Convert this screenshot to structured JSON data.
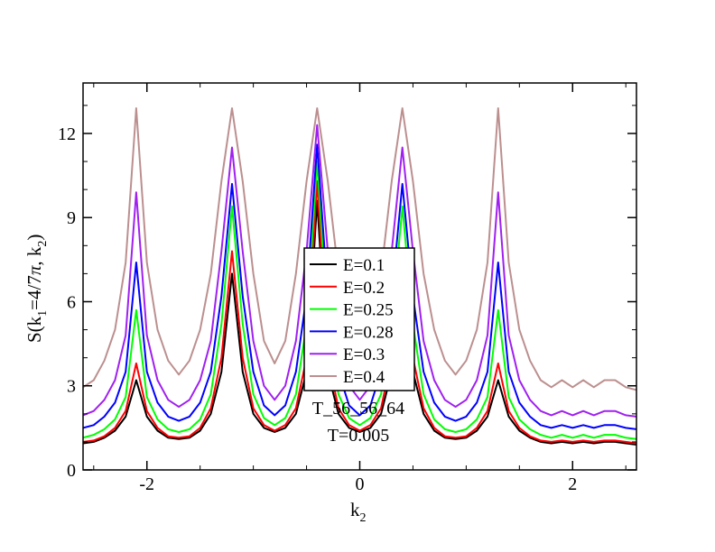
{
  "chart_data": {
    "type": "line",
    "xlabel_main": "k",
    "xlabel_sub": "2",
    "ylabel": {
      "prefix": "S(k",
      "sub1": "1",
      "mid": "=4/7",
      "pi": "π",
      "comma": ", k",
      "sub2": "2",
      "suffix": ")"
    },
    "xlim": [
      -2.6,
      2.6
    ],
    "ylim": [
      0,
      13.8
    ],
    "xticks": [
      -2,
      0,
      2
    ],
    "xtick_labels": [
      "-2",
      "0",
      "2"
    ],
    "yticks": [
      0,
      3,
      6,
      9,
      12
    ],
    "ytick_labels": [
      "0",
      "3",
      "6",
      "9",
      "12"
    ],
    "legend_position": "center",
    "annotations": [
      "T_56_56_64",
      "T=0.005"
    ],
    "x": [
      -2.6,
      -2.5,
      -2.4,
      -2.3,
      -2.2,
      -2.1,
      -2.0,
      -1.9,
      -1.8,
      -1.7,
      -1.6,
      -1.5,
      -1.4,
      -1.3,
      -1.2,
      -1.1,
      -1.0,
      -0.9,
      -0.8,
      -0.7,
      -0.6,
      -0.5,
      -0.4,
      -0.3,
      -0.2,
      -0.1,
      0.0,
      0.1,
      0.2,
      0.3,
      0.4,
      0.5,
      0.6,
      0.7,
      0.8,
      0.9,
      1.0,
      1.1,
      1.2,
      1.3,
      1.4,
      1.5,
      1.6,
      1.7,
      1.8,
      1.9,
      2.0,
      2.1,
      2.2,
      2.3,
      2.4,
      2.5,
      2.6
    ],
    "series": [
      {
        "name": "E=0.1",
        "color": "#000000",
        "values": [
          0.95,
          1.0,
          1.15,
          1.4,
          1.9,
          3.2,
          1.9,
          1.4,
          1.15,
          1.1,
          1.15,
          1.4,
          2.0,
          3.5,
          7.0,
          3.5,
          2.0,
          1.5,
          1.35,
          1.5,
          2.0,
          3.5,
          9.6,
          3.5,
          2.0,
          1.5,
          1.35,
          1.5,
          2.0,
          3.5,
          7.0,
          3.5,
          2.0,
          1.4,
          1.15,
          1.1,
          1.15,
          1.4,
          1.9,
          3.2,
          1.9,
          1.4,
          1.15,
          1.0,
          0.95,
          1.0,
          0.95,
          1.0,
          0.95,
          1.0,
          1.0,
          0.95,
          0.9
        ]
      },
      {
        "name": "E=0.2",
        "color": "#ff0000",
        "values": [
          1.0,
          1.05,
          1.2,
          1.5,
          2.1,
          3.8,
          2.1,
          1.5,
          1.2,
          1.15,
          1.2,
          1.5,
          2.2,
          4.0,
          7.8,
          4.0,
          2.2,
          1.6,
          1.4,
          1.6,
          2.2,
          4.0,
          10.3,
          4.0,
          2.2,
          1.6,
          1.4,
          1.6,
          2.2,
          4.0,
          7.8,
          4.0,
          2.2,
          1.5,
          1.2,
          1.15,
          1.2,
          1.5,
          2.1,
          3.8,
          2.1,
          1.5,
          1.2,
          1.05,
          1.0,
          1.05,
          1.0,
          1.05,
          1.0,
          1.05,
          1.05,
          1.0,
          0.95
        ]
      },
      {
        "name": "E=0.25",
        "color": "#00ff00",
        "values": [
          1.15,
          1.25,
          1.45,
          1.8,
          2.6,
          5.7,
          2.6,
          1.8,
          1.45,
          1.35,
          1.45,
          1.8,
          2.7,
          5.2,
          9.4,
          5.2,
          2.7,
          1.85,
          1.6,
          1.85,
          2.7,
          5.2,
          11.0,
          5.2,
          2.7,
          1.85,
          1.6,
          1.85,
          2.7,
          5.2,
          9.4,
          5.2,
          2.7,
          1.8,
          1.45,
          1.35,
          1.45,
          1.8,
          2.6,
          5.7,
          2.6,
          1.8,
          1.45,
          1.25,
          1.15,
          1.25,
          1.15,
          1.25,
          1.15,
          1.25,
          1.25,
          1.15,
          1.1
        ]
      },
      {
        "name": "E=0.28",
        "color": "#0000ff",
        "values": [
          1.5,
          1.6,
          1.9,
          2.4,
          3.5,
          7.4,
          3.5,
          2.4,
          1.9,
          1.75,
          1.9,
          2.4,
          3.5,
          6.2,
          10.2,
          6.2,
          3.5,
          2.3,
          1.95,
          2.3,
          3.5,
          6.2,
          11.6,
          6.2,
          3.5,
          2.3,
          1.95,
          2.3,
          3.5,
          6.2,
          10.2,
          6.2,
          3.5,
          2.4,
          1.9,
          1.75,
          1.9,
          2.4,
          3.5,
          7.4,
          3.5,
          2.4,
          1.9,
          1.6,
          1.5,
          1.6,
          1.5,
          1.6,
          1.5,
          1.6,
          1.6,
          1.5,
          1.45
        ]
      },
      {
        "name": "E=0.3",
        "color": "#a020f0",
        "values": [
          1.95,
          2.1,
          2.5,
          3.2,
          4.8,
          9.9,
          4.8,
          3.2,
          2.5,
          2.25,
          2.5,
          3.2,
          4.6,
          7.8,
          11.5,
          7.8,
          4.6,
          3.0,
          2.5,
          3.0,
          4.6,
          7.8,
          12.3,
          7.8,
          4.6,
          3.0,
          2.5,
          3.0,
          4.6,
          7.8,
          11.5,
          7.8,
          4.6,
          3.2,
          2.5,
          2.25,
          2.5,
          3.2,
          4.8,
          9.9,
          4.8,
          3.2,
          2.5,
          2.1,
          1.95,
          2.1,
          1.95,
          2.1,
          1.95,
          2.1,
          2.1,
          1.95,
          1.9
        ]
      },
      {
        "name": "E=0.4",
        "color": "#bc8f8f",
        "values": [
          2.95,
          3.2,
          3.9,
          5.0,
          7.4,
          12.9,
          7.4,
          5.0,
          3.9,
          3.4,
          3.9,
          5.0,
          7.0,
          10.3,
          12.9,
          10.3,
          7.0,
          4.6,
          3.8,
          4.6,
          7.0,
          10.3,
          12.9,
          10.3,
          7.0,
          4.6,
          3.8,
          4.6,
          7.0,
          10.3,
          12.9,
          10.3,
          7.0,
          5.0,
          3.9,
          3.4,
          3.9,
          5.0,
          7.4,
          12.9,
          7.4,
          5.0,
          3.9,
          3.2,
          2.95,
          3.2,
          2.95,
          3.2,
          2.95,
          3.2,
          3.2,
          2.95,
          2.85
        ]
      }
    ]
  }
}
